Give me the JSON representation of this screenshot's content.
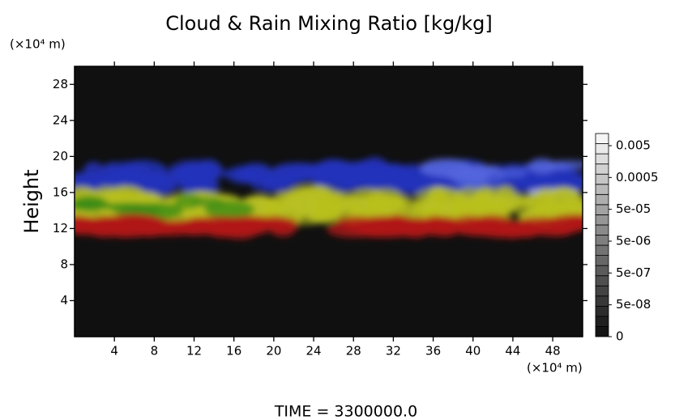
{
  "chart_data": {
    "type": "volume-render",
    "title": "Cloud & Rain Mixing Ratio [kg/kg]",
    "y_label": "Height",
    "y_unit": "(×10⁴ m)",
    "x_unit": "(×10⁴ m)",
    "footer": "TIME = 3300000.0",
    "xlim": [
      0,
      51
    ],
    "xticks": [
      4,
      8,
      12,
      16,
      20,
      24,
      28,
      32,
      36,
      40,
      44,
      48
    ],
    "ylim": [
      0,
      30
    ],
    "yticks": [
      4,
      8,
      12,
      16,
      20,
      24,
      28
    ],
    "colorbar_ticks": [
      0,
      {
        "value": 5e-08,
        "label": "5e-08"
      },
      {
        "value": 5e-07,
        "label": "5e-07"
      },
      {
        "value": 5e-06,
        "label": "5e-06"
      },
      {
        "value": 5e-05,
        "label": "5e-05"
      },
      0.0005,
      0.005
    ]
  }
}
